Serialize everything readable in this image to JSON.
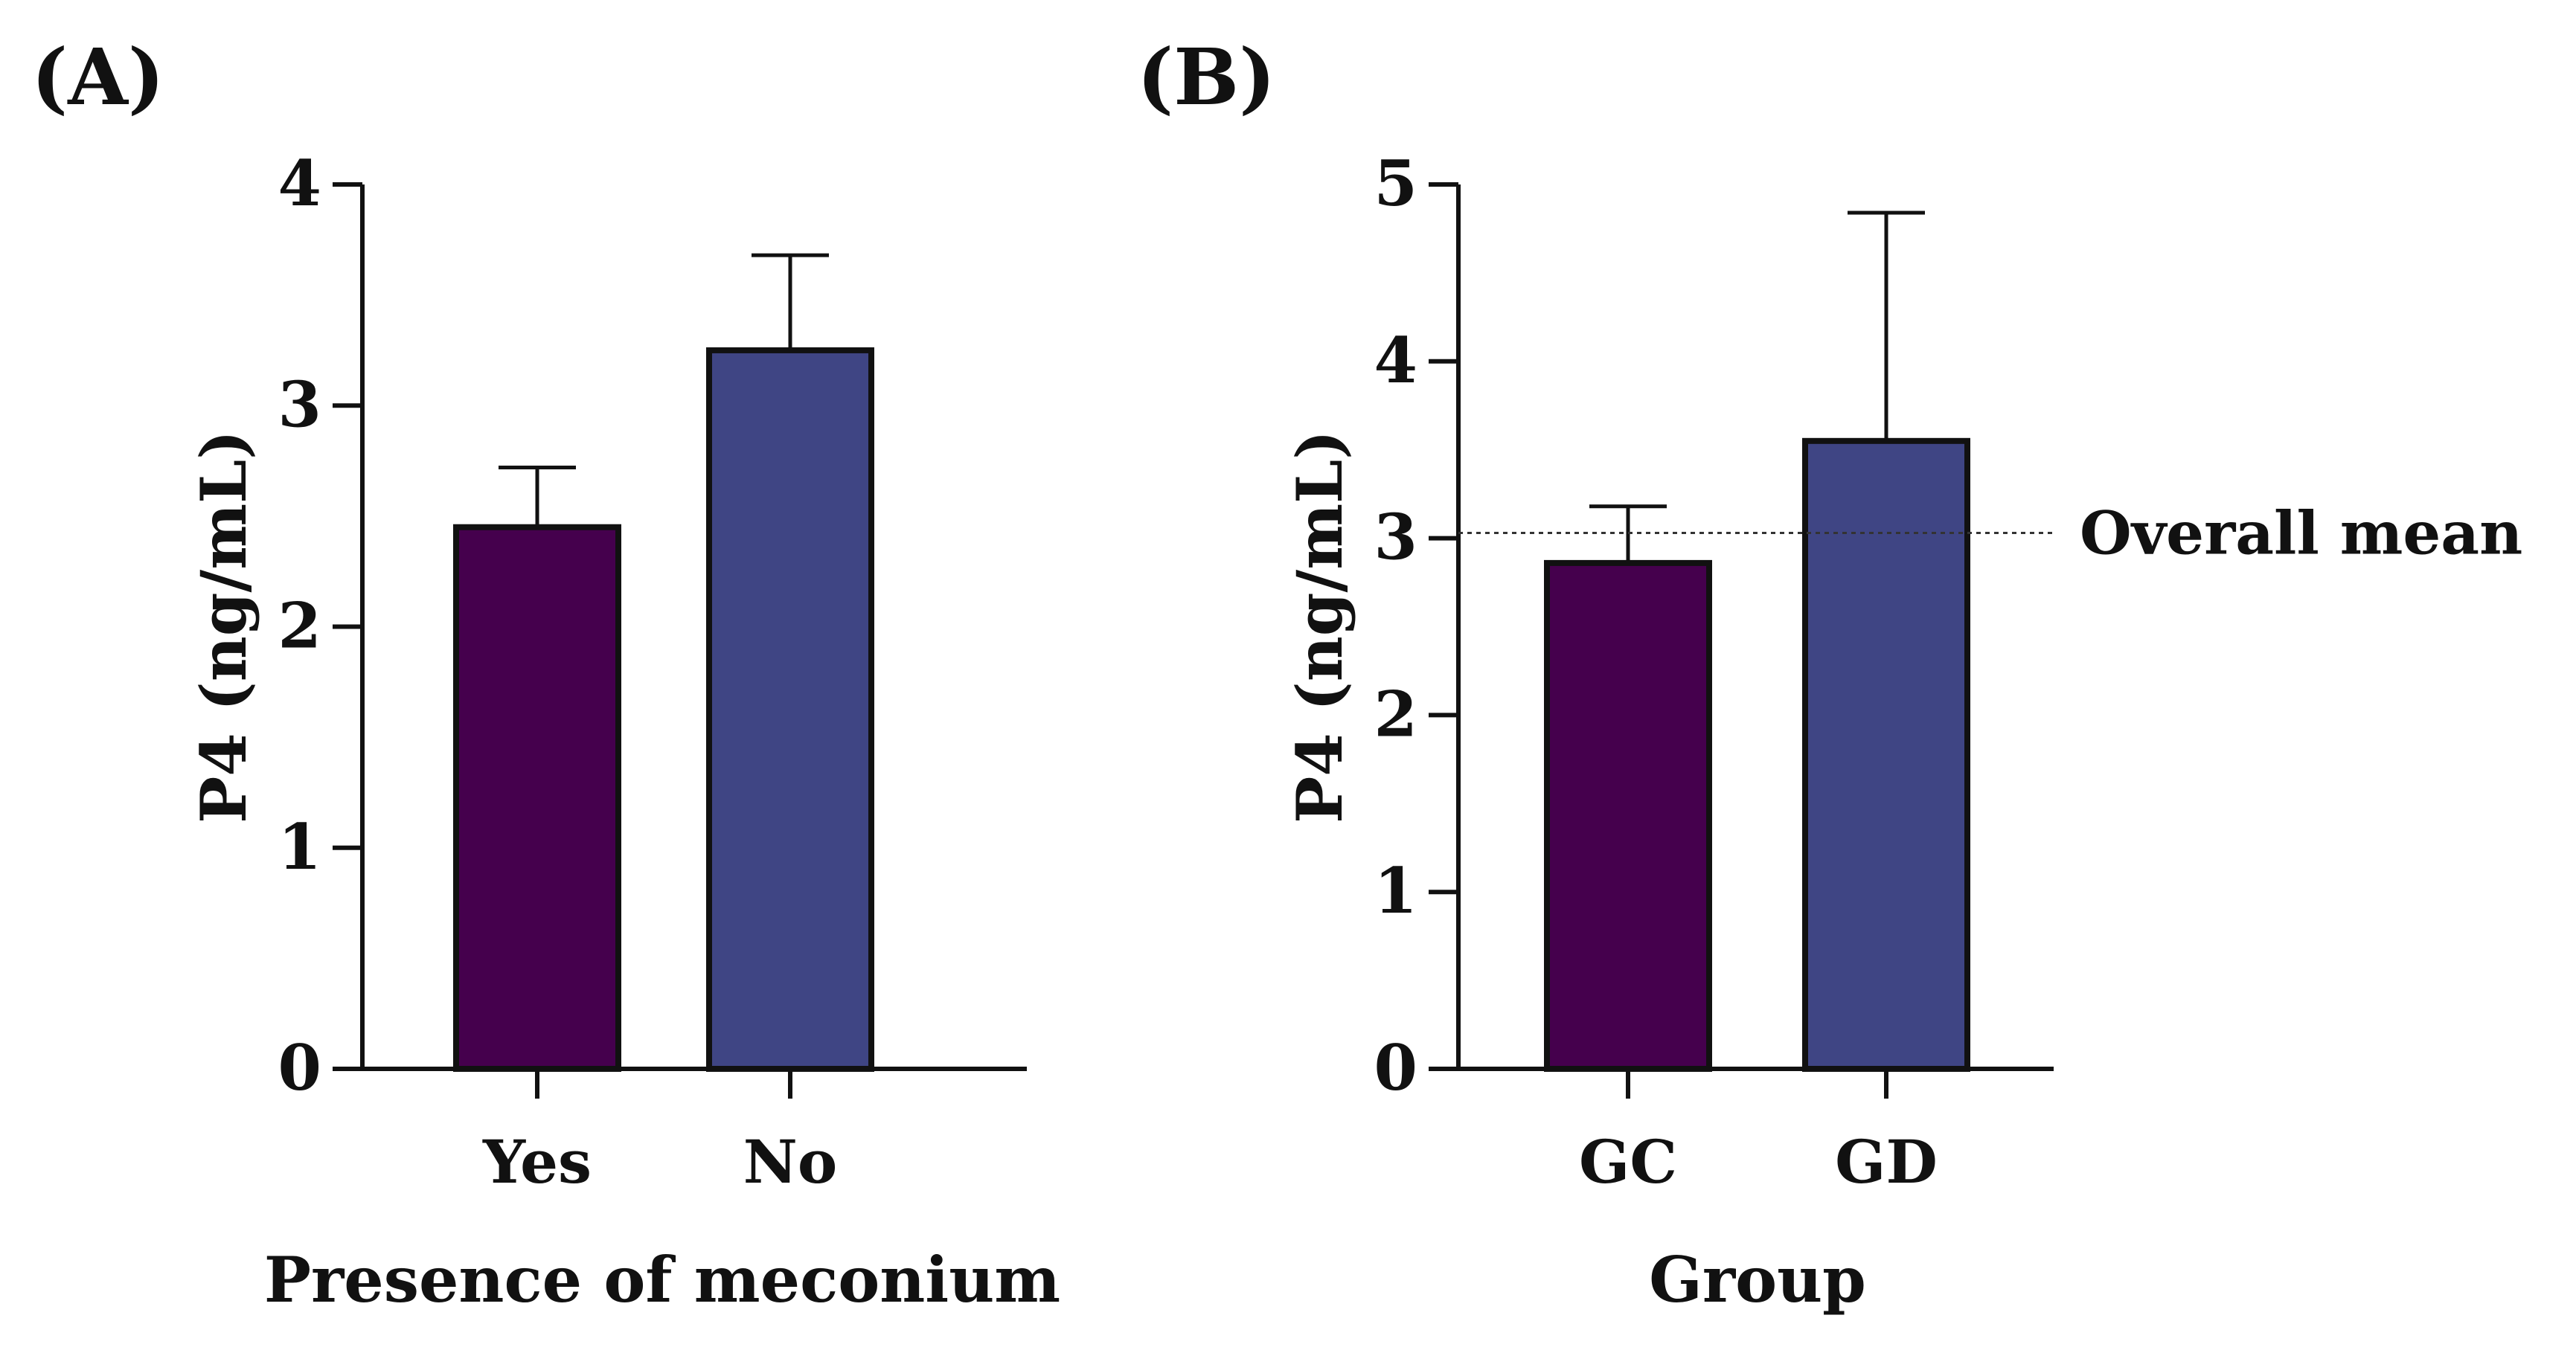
{
  "chart_data": [
    {
      "type": "bar",
      "panel_label": "(A)",
      "categories": [
        "Yes",
        "No"
      ],
      "values": [
        2.45,
        3.25
      ],
      "error_upper": [
        2.72,
        3.68
      ],
      "colors": [
        "#45004d",
        "#3f4584"
      ],
      "ylim": [
        0,
        4
      ],
      "yticks": [
        0,
        1,
        2,
        3,
        4
      ],
      "ytick_labels": [
        "0",
        "1",
        "2",
        "3",
        "4"
      ],
      "ylabel": "P4 (ng/mL)",
      "xlabel": "Presence of meconium"
    },
    {
      "type": "bar",
      "panel_label": "(B)",
      "categories": [
        "GC",
        "GD"
      ],
      "values": [
        2.86,
        3.55
      ],
      "error_upper": [
        3.18,
        4.84
      ],
      "colors": [
        "#45004d",
        "#3f4584"
      ],
      "ylim": [
        0,
        5
      ],
      "yticks": [
        0,
        1,
        2,
        3,
        4,
        5
      ],
      "ytick_labels": [
        "0",
        "1",
        "2",
        "3",
        "4",
        "5"
      ],
      "ylabel": "P4 (ng/mL)",
      "xlabel": "Group",
      "reference_line": {
        "value": 3.03,
        "label": "Overall mean",
        "style": "dotted"
      }
    }
  ]
}
